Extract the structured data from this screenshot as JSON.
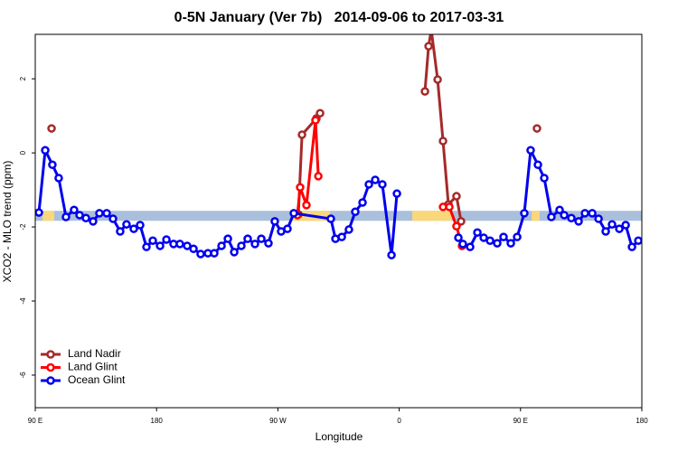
{
  "chart_data": {
    "type": "line",
    "title": "0-5N January (Ver 7b)   2014-09-06 to 2017-03-31",
    "xlabel": "Longitude",
    "ylabel": "XCO2 - MLO trend (ppm)",
    "xlim": [
      90,
      540
    ],
    "ylim": [
      -6.88,
      3.2
    ],
    "xticks": [
      {
        "value": 90,
        "label": "90 E"
      },
      {
        "value": 180,
        "label": "180"
      },
      {
        "value": 270,
        "label": "90 W"
      },
      {
        "value": 360,
        "label": "0"
      },
      {
        "value": 450,
        "label": "90 E"
      },
      {
        "value": 540,
        "label": "180"
      }
    ],
    "yticks": [
      -6,
      -4,
      -2,
      0,
      2
    ],
    "band": {
      "y": -1.7,
      "color": "#a9bfdc",
      "highlight_color": "#f9d77b",
      "highlight_ranges": [
        [
          95.4,
          104.1
        ],
        [
          280.5,
          308.6
        ],
        [
          369.7,
          399.2
        ],
        [
          458.2,
          464.2
        ]
      ]
    },
    "legend": "bottom-left",
    "series": [
      {
        "name": "Land Nadir",
        "color": "#a52a2a",
        "x": [
          102.1,
          null,
          285.2,
          287.9,
          298.6,
          301.3,
          null,
          379.1,
          381.8,
          383.8,
          388.5,
          392.5,
          396.5,
          402.5,
          405.9,
          null,
          462.2
        ],
        "values": [
          0.66,
          null,
          -1.66,
          0.49,
          0.93,
          1.07,
          null,
          1.66,
          2.88,
          3.32,
          1.98,
          0.32,
          -1.39,
          -1.17,
          -1.85,
          null,
          0.66
        ]
      },
      {
        "name": "Land Glint",
        "color": "#ff0000",
        "x": [
          284.5,
          286.5,
          291.2,
          297.9,
          300.0,
          null,
          392.5,
          397.2,
          402.5,
          406.6
        ],
        "values": [
          -1.68,
          -0.93,
          -1.41,
          0.88,
          -0.63,
          null,
          -1.46,
          -1.46,
          -1.98,
          -2.51
        ]
      },
      {
        "name": "Ocean Glint",
        "color": "#0000ee",
        "x": [
          92.7,
          97.4,
          102.7,
          107.4,
          112.8,
          118.8,
          122.9,
          127.6,
          132.9,
          137.6,
          143.0,
          147.7,
          153.0,
          157.7,
          163.1,
          167.8,
          172.5,
          177.2,
          182.6,
          187.3,
          192.6,
          197.3,
          202.7,
          207.4,
          212.7,
          218.1,
          222.8,
          228.2,
          232.9,
          237.6,
          242.9,
          247.6,
          253.0,
          257.7,
          263.0,
          267.7,
          272.4,
          277.1,
          281.8,
          309.3,
          312.7,
          317.4,
          322.7,
          327.4,
          332.8,
          337.5,
          342.2,
          347.5,
          354.3,
          358.3,
          null,
          403.9,
          407.2,
          412.6,
          418.0,
          422.7,
          427.4,
          432.7,
          437.4,
          442.8,
          447.5,
          452.8,
          457.5,
          462.9,
          467.6,
          472.9,
          479.0,
          482.4,
          487.7,
          493.1,
          497.8,
          503.2,
          507.9,
          513.2,
          517.9,
          523.3,
          528.0,
          532.7,
          537.4
        ],
        "values": [
          -1.61,
          0.07,
          -0.32,
          -0.68,
          -1.73,
          -1.54,
          -1.68,
          -1.76,
          -1.85,
          -1.63,
          -1.63,
          -1.78,
          -2.12,
          -1.93,
          -2.05,
          -1.95,
          -2.54,
          -2.37,
          -2.51,
          -2.34,
          -2.46,
          -2.46,
          -2.51,
          -2.59,
          -2.73,
          -2.71,
          -2.71,
          -2.51,
          -2.32,
          -2.68,
          -2.51,
          -2.32,
          -2.46,
          -2.32,
          -2.44,
          -1.85,
          -2.12,
          -2.05,
          -1.63,
          -1.78,
          -2.32,
          -2.27,
          -2.07,
          -1.59,
          -1.34,
          -0.85,
          -0.73,
          -0.85,
          -2.76,
          -1.1,
          null,
          -2.29,
          -2.46,
          -2.54,
          -2.15,
          -2.29,
          -2.37,
          -2.44,
          -2.27,
          -2.44,
          -2.27,
          -1.63,
          0.07,
          -0.32,
          -0.68,
          -1.73,
          -1.54,
          -1.68,
          -1.76,
          -1.85,
          -1.63,
          -1.63,
          -1.78,
          -2.12,
          -1.93,
          -2.05,
          -1.95,
          -2.54,
          -2.37
        ]
      }
    ]
  }
}
